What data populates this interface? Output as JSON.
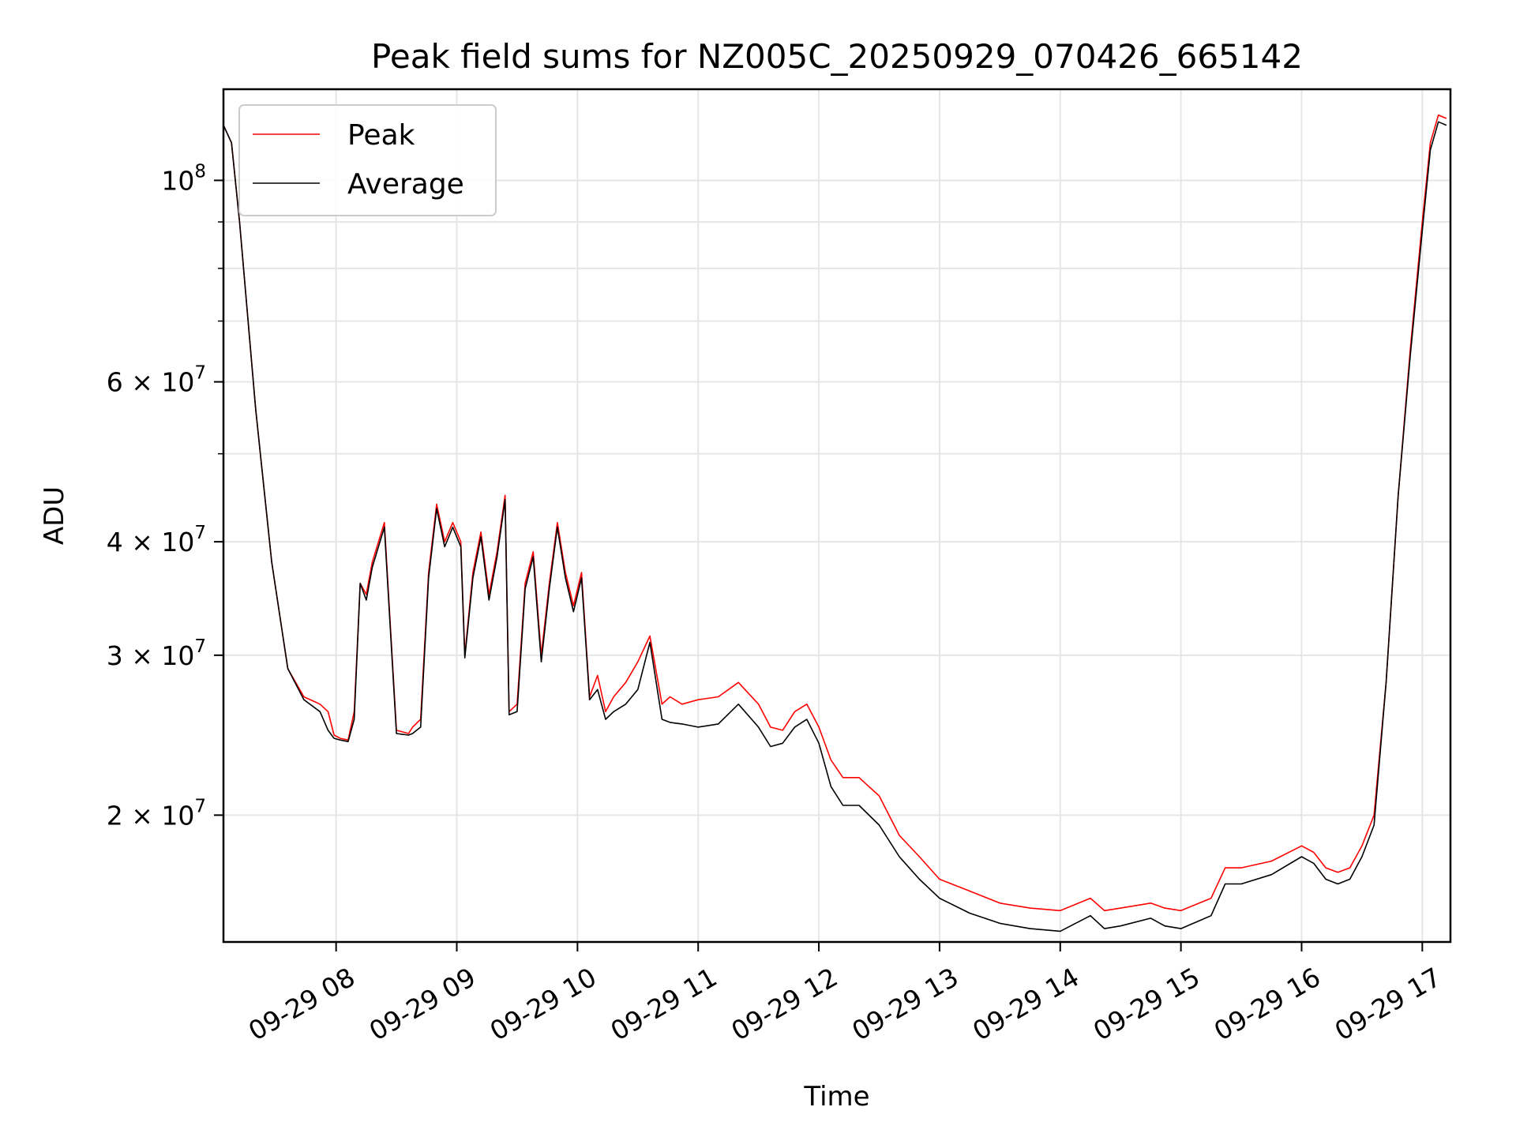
{
  "chart_data": {
    "type": "line",
    "title": "Peak field sums for NZ005C_20250929_070426_665142",
    "xlabel": "Time",
    "ylabel": "ADU",
    "y_scale": "log",
    "grid": true,
    "legend_placement": "top-left",
    "xlim": [
      "2025-09-29 07:04",
      "2025-09-29 17:14"
    ],
    "ylim": [
      14500000,
      126000000
    ],
    "x_ticks": [
      {
        "value": "2025-09-29 08:00",
        "label": "09-29 08"
      },
      {
        "value": "2025-09-29 09:00",
        "label": "09-29 09"
      },
      {
        "value": "2025-09-29 10:00",
        "label": "09-29 10"
      },
      {
        "value": "2025-09-29 11:00",
        "label": "09-29 11"
      },
      {
        "value": "2025-09-29 12:00",
        "label": "09-29 12"
      },
      {
        "value": "2025-09-29 13:00",
        "label": "09-29 13"
      },
      {
        "value": "2025-09-29 14:00",
        "label": "09-29 14"
      },
      {
        "value": "2025-09-29 15:00",
        "label": "09-29 15"
      },
      {
        "value": "2025-09-29 16:00",
        "label": "09-29 16"
      },
      {
        "value": "2025-09-29 17:00",
        "label": "09-29 17"
      }
    ],
    "y_ticks": [
      {
        "value": 20000000,
        "base": "2 × 10",
        "exp": "7"
      },
      {
        "value": 30000000,
        "base": "3 × 10",
        "exp": "7"
      },
      {
        "value": 40000000,
        "base": "4 × 10",
        "exp": "7"
      },
      {
        "value": 60000000,
        "base": "6 × 10",
        "exp": "7"
      },
      {
        "value": 100000000,
        "base": "10",
        "exp": "8"
      }
    ],
    "y_minor_ticks": [
      50000000,
      70000000,
      80000000,
      90000000
    ],
    "series": [
      {
        "name": "Peak",
        "color": "#ff0000",
        "x": [
          "2025-09-29 07:04",
          "2025-09-29 07:08",
          "2025-09-29 07:12",
          "2025-09-29 07:20",
          "2025-09-29 07:28",
          "2025-09-29 07:36",
          "2025-09-29 07:44",
          "2025-09-29 07:52",
          "2025-09-29 07:56",
          "2025-09-29 07:59",
          "2025-09-29 08:02",
          "2025-09-29 08:06",
          "2025-09-29 08:09",
          "2025-09-29 08:12",
          "2025-09-29 08:15",
          "2025-09-29 08:18",
          "2025-09-29 08:24",
          "2025-09-29 08:30",
          "2025-09-29 08:36",
          "2025-09-29 08:38",
          "2025-09-29 08:42",
          "2025-09-29 08:46",
          "2025-09-29 08:50",
          "2025-09-29 08:54",
          "2025-09-29 08:58",
          "2025-09-29 09:02",
          "2025-09-29 09:04",
          "2025-09-29 09:08",
          "2025-09-29 09:12",
          "2025-09-29 09:16",
          "2025-09-29 09:20",
          "2025-09-29 09:24",
          "2025-09-29 09:26",
          "2025-09-29 09:30",
          "2025-09-29 09:34",
          "2025-09-29 09:38",
          "2025-09-29 09:42",
          "2025-09-29 09:46",
          "2025-09-29 09:50",
          "2025-09-29 09:54",
          "2025-09-29 09:58",
          "2025-09-29 10:02",
          "2025-09-29 10:06",
          "2025-09-29 10:10",
          "2025-09-29 10:14",
          "2025-09-29 10:18",
          "2025-09-29 10:24",
          "2025-09-29 10:30",
          "2025-09-29 10:36",
          "2025-09-29 10:42",
          "2025-09-29 10:46",
          "2025-09-29 10:52",
          "2025-09-29 11:00",
          "2025-09-29 11:10",
          "2025-09-29 11:20",
          "2025-09-29 11:30",
          "2025-09-29 11:36",
          "2025-09-29 11:42",
          "2025-09-29 11:48",
          "2025-09-29 11:54",
          "2025-09-29 12:00",
          "2025-09-29 12:06",
          "2025-09-29 12:12",
          "2025-09-29 12:20",
          "2025-09-29 12:30",
          "2025-09-29 12:40",
          "2025-09-29 12:50",
          "2025-09-29 13:00",
          "2025-09-29 13:15",
          "2025-09-29 13:30",
          "2025-09-29 13:45",
          "2025-09-29 14:00",
          "2025-09-29 14:15",
          "2025-09-29 14:22",
          "2025-09-29 14:30",
          "2025-09-29 14:45",
          "2025-09-29 14:52",
          "2025-09-29 15:00",
          "2025-09-29 15:15",
          "2025-09-29 15:22",
          "2025-09-29 15:30",
          "2025-09-29 15:45",
          "2025-09-29 16:00",
          "2025-09-29 16:06",
          "2025-09-29 16:12",
          "2025-09-29 16:18",
          "2025-09-29 16:24",
          "2025-09-29 16:30",
          "2025-09-29 16:36",
          "2025-09-29 16:42",
          "2025-09-29 16:48",
          "2025-09-29 16:54",
          "2025-09-29 17:00",
          "2025-09-29 17:04",
          "2025-09-29 17:08",
          "2025-09-29 17:12"
        ],
        "y": [
          115000000,
          110000000,
          90000000,
          56000000,
          38000000,
          29000000,
          27000000,
          26500000,
          26000000,
          24500000,
          24300000,
          24200000,
          26000000,
          36000000,
          35000000,
          38000000,
          42000000,
          24800000,
          24600000,
          25000000,
          25500000,
          37000000,
          44000000,
          40000000,
          42000000,
          40000000,
          30000000,
          37000000,
          41000000,
          35000000,
          39000000,
          45000000,
          26000000,
          26500000,
          36000000,
          39000000,
          30000000,
          36000000,
          42000000,
          37000000,
          34000000,
          37000000,
          27000000,
          28500000,
          26000000,
          27000000,
          28000000,
          29500000,
          31500000,
          26500000,
          27000000,
          26500000,
          26800000,
          27000000,
          28000000,
          26500000,
          25000000,
          24800000,
          26000000,
          26500000,
          25000000,
          23000000,
          22000000,
          22000000,
          21000000,
          19000000,
          18000000,
          17000000,
          16500000,
          16000000,
          15800000,
          15700000,
          16200000,
          15700000,
          15800000,
          16000000,
          15800000,
          15700000,
          16200000,
          17500000,
          17500000,
          17800000,
          18500000,
          18200000,
          17500000,
          17300000,
          17500000,
          18500000,
          20000000,
          28000000,
          45000000,
          65000000,
          90000000,
          110000000,
          118000000,
          117000000
        ]
      },
      {
        "name": "Average",
        "color": "#000000",
        "x": [
          "2025-09-29 07:04",
          "2025-09-29 07:08",
          "2025-09-29 07:12",
          "2025-09-29 07:20",
          "2025-09-29 07:28",
          "2025-09-29 07:36",
          "2025-09-29 07:44",
          "2025-09-29 07:52",
          "2025-09-29 07:56",
          "2025-09-29 07:59",
          "2025-09-29 08:02",
          "2025-09-29 08:06",
          "2025-09-29 08:09",
          "2025-09-29 08:12",
          "2025-09-29 08:15",
          "2025-09-29 08:18",
          "2025-09-29 08:24",
          "2025-09-29 08:30",
          "2025-09-29 08:36",
          "2025-09-29 08:38",
          "2025-09-29 08:42",
          "2025-09-29 08:46",
          "2025-09-29 08:50",
          "2025-09-29 08:54",
          "2025-09-29 08:58",
          "2025-09-29 09:02",
          "2025-09-29 09:04",
          "2025-09-29 09:08",
          "2025-09-29 09:12",
          "2025-09-29 09:16",
          "2025-09-29 09:20",
          "2025-09-29 09:24",
          "2025-09-29 09:26",
          "2025-09-29 09:30",
          "2025-09-29 09:34",
          "2025-09-29 09:38",
          "2025-09-29 09:42",
          "2025-09-29 09:46",
          "2025-09-29 09:50",
          "2025-09-29 09:54",
          "2025-09-29 09:58",
          "2025-09-29 10:02",
          "2025-09-29 10:06",
          "2025-09-29 10:10",
          "2025-09-29 10:14",
          "2025-09-29 10:18",
          "2025-09-29 10:24",
          "2025-09-29 10:30",
          "2025-09-29 10:36",
          "2025-09-29 10:42",
          "2025-09-29 10:46",
          "2025-09-29 10:52",
          "2025-09-29 11:00",
          "2025-09-29 11:10",
          "2025-09-29 11:20",
          "2025-09-29 11:30",
          "2025-09-29 11:36",
          "2025-09-29 11:42",
          "2025-09-29 11:48",
          "2025-09-29 11:54",
          "2025-09-29 12:00",
          "2025-09-29 12:06",
          "2025-09-29 12:12",
          "2025-09-29 12:20",
          "2025-09-29 12:30",
          "2025-09-29 12:40",
          "2025-09-29 12:50",
          "2025-09-29 13:00",
          "2025-09-29 13:15",
          "2025-09-29 13:30",
          "2025-09-29 13:45",
          "2025-09-29 14:00",
          "2025-09-29 14:15",
          "2025-09-29 14:22",
          "2025-09-29 14:30",
          "2025-09-29 14:45",
          "2025-09-29 14:52",
          "2025-09-29 15:00",
          "2025-09-29 15:15",
          "2025-09-29 15:22",
          "2025-09-29 15:30",
          "2025-09-29 15:45",
          "2025-09-29 16:00",
          "2025-09-29 16:06",
          "2025-09-29 16:12",
          "2025-09-29 16:18",
          "2025-09-29 16:24",
          "2025-09-29 16:30",
          "2025-09-29 16:36",
          "2025-09-29 16:42",
          "2025-09-29 16:48",
          "2025-09-29 16:54",
          "2025-09-29 17:00",
          "2025-09-29 17:04",
          "2025-09-29 17:08",
          "2025-09-29 17:12"
        ],
        "y": [
          115000000,
          110000000,
          90000000,
          56000000,
          38000000,
          29000000,
          26800000,
          26000000,
          24800000,
          24300000,
          24200000,
          24100000,
          25500000,
          36000000,
          34500000,
          37500000,
          41500000,
          24600000,
          24500000,
          24600000,
          25000000,
          36500000,
          43500000,
          39500000,
          41500000,
          39500000,
          29800000,
          36500000,
          40500000,
          34500000,
          38500000,
          44500000,
          25800000,
          26000000,
          35500000,
          38500000,
          29500000,
          35500000,
          41500000,
          36500000,
          33500000,
          36500000,
          26800000,
          27500000,
          25500000,
          26000000,
          26500000,
          27500000,
          31000000,
          25500000,
          25300000,
          25200000,
          25000000,
          25200000,
          26500000,
          25000000,
          23800000,
          24000000,
          25000000,
          25500000,
          24000000,
          21500000,
          20500000,
          20500000,
          19500000,
          18000000,
          17000000,
          16200000,
          15600000,
          15200000,
          15000000,
          14900000,
          15500000,
          15000000,
          15100000,
          15400000,
          15100000,
          15000000,
          15500000,
          16800000,
          16800000,
          17200000,
          18000000,
          17700000,
          17000000,
          16800000,
          17000000,
          18000000,
          19500000,
          28000000,
          45000000,
          64000000,
          88000000,
          108000000,
          116000000,
          115000000
        ]
      }
    ]
  }
}
